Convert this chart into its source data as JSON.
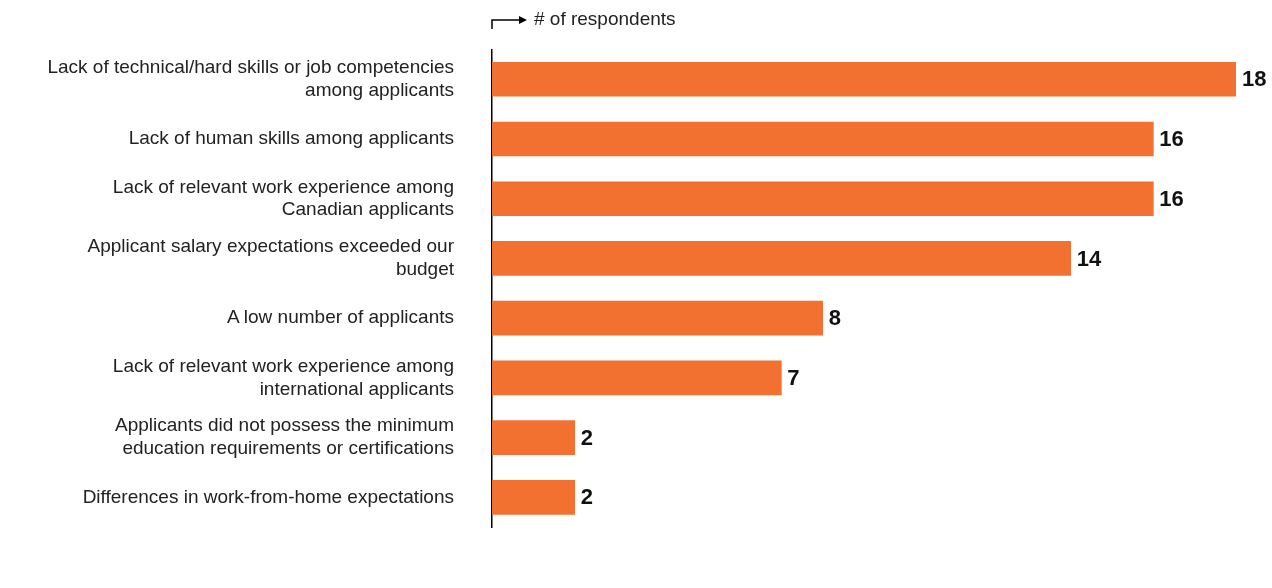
{
  "chart_data": {
    "type": "bar",
    "orientation": "horizontal",
    "xlabel": "# of respondents",
    "categories": [
      "Lack of technical/hard skills or job competencies among applicants",
      "Lack of human skills among applicants",
      "Lack of relevant work experience among Canadian applicants",
      "Applicant salary expectations exceeded our budget",
      "A low number of applicants",
      "Lack of relevant work experience among international applicants",
      "Applicants did not possess the minimum education requirements or certifications",
      "Differences in work-from-home expectations"
    ],
    "values": [
      18,
      16,
      16,
      14,
      8,
      7,
      2,
      2
    ],
    "color": "#f37130",
    "data_labels": true,
    "grid": false,
    "legend": false,
    "tick_labels": "y"
  }
}
